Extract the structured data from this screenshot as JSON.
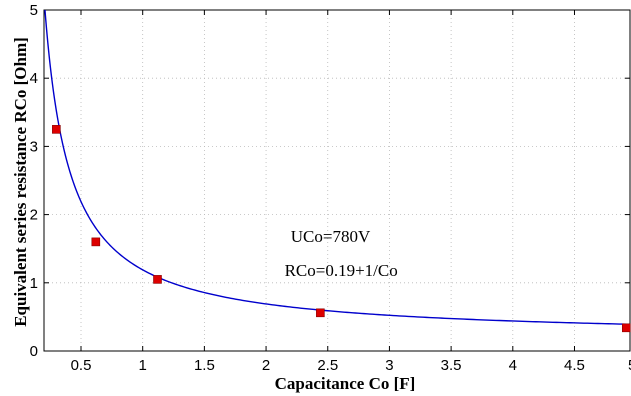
{
  "chart_data": {
    "type": "line",
    "xlabel": "Capacitance Co [F]",
    "ylabel": "Equivalent series resistance RCo [Ohm]",
    "xlim": [
      0.2,
      4.95
    ],
    "ylim": [
      0,
      5
    ],
    "x_ticks": [
      0.5,
      1,
      1.5,
      2,
      2.5,
      3,
      3.5,
      4,
      4.5
    ],
    "x_tick_labels": [
      "0.5",
      "1",
      "1.5",
      "2",
      "2.5",
      "3",
      "3.5",
      "4",
      "4.5"
    ],
    "x_edge_label": "5",
    "y_ticks": [
      0,
      1,
      2,
      3,
      4,
      5
    ],
    "y_tick_labels": [
      "0",
      "1",
      "2",
      "3",
      "4",
      "5"
    ],
    "grid": "dotted",
    "series": [
      {
        "type": "line",
        "formula": "0.19 + 1/x",
        "color": "#0000cc"
      },
      {
        "type": "scatter",
        "marker": "square",
        "color": "#dd0000",
        "x": [
          0.3,
          0.62,
          1.12,
          2.44,
          4.92
        ],
        "y": [
          3.25,
          1.6,
          1.05,
          0.56,
          0.34
        ]
      }
    ],
    "annotations": [
      {
        "text": "UCo=780V",
        "x": 2.2,
        "y": 1.6
      },
      {
        "text": "RCo=0.19+1/Co",
        "x": 2.15,
        "y": 1.1
      }
    ]
  }
}
